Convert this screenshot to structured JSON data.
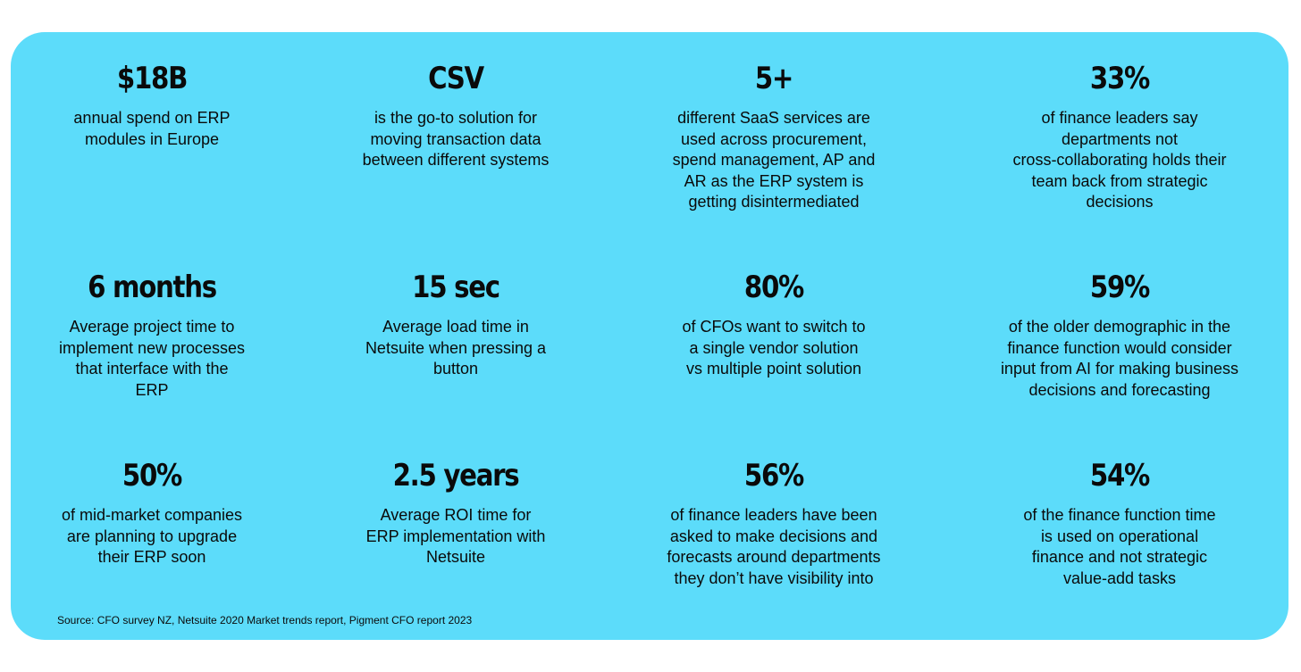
{
  "stats": [
    {
      "value": "$18B",
      "description": [
        "annual spend on ERP",
        "modules in Europe"
      ]
    },
    {
      "value": "CSV",
      "description": [
        "is the go-to solution for",
        "moving transaction data",
        "between different systems"
      ]
    },
    {
      "value": "5+",
      "description": [
        "different SaaS services are",
        "used across procurement,",
        "spend management, AP and",
        "AR as the ERP system is",
        "getting disintermediated"
      ]
    },
    {
      "value": "33%",
      "description": [
        "of finance leaders say",
        "departments not",
        "cross-collaborating holds their",
        "team back from strategic",
        "decisions"
      ]
    },
    {
      "value": "6 months",
      "description": [
        "Average project time to",
        "implement new processes",
        "that interface with the",
        "ERP"
      ]
    },
    {
      "value": "15 sec",
      "description": [
        "Average load time in",
        "Netsuite when pressing a",
        "button"
      ]
    },
    {
      "value": "80%",
      "description": [
        "of CFOs want to switch to",
        "a single vendor solution",
        "vs multiple point solution"
      ]
    },
    {
      "value": "59%",
      "description": [
        "of the older demographic in the",
        "finance function would consider",
        "input from AI for making business",
        "decisions and forecasting"
      ]
    },
    {
      "value": "50%",
      "description": [
        "of mid-market companies",
        "are planning to upgrade",
        "their ERP soon"
      ]
    },
    {
      "value": "2.5 years",
      "description": [
        "Average ROI time for",
        "ERP implementation with",
        "Netsuite"
      ]
    },
    {
      "value": "56%",
      "description": [
        "of finance leaders have been",
        "asked to make decisions and",
        "forecasts around departments",
        "they don’t have visibility into"
      ]
    },
    {
      "value": "54%",
      "description": [
        "of the finance function time",
        "is used on operational",
        "finance and not strategic",
        "value-add tasks"
      ]
    }
  ],
  "source": "Source: CFO survey NZ, Netsuite 2020 Market trends report, Pigment CFO report 2023",
  "colors": {
    "card_background": "#5cdcfa",
    "text": "#0a0a0a"
  }
}
